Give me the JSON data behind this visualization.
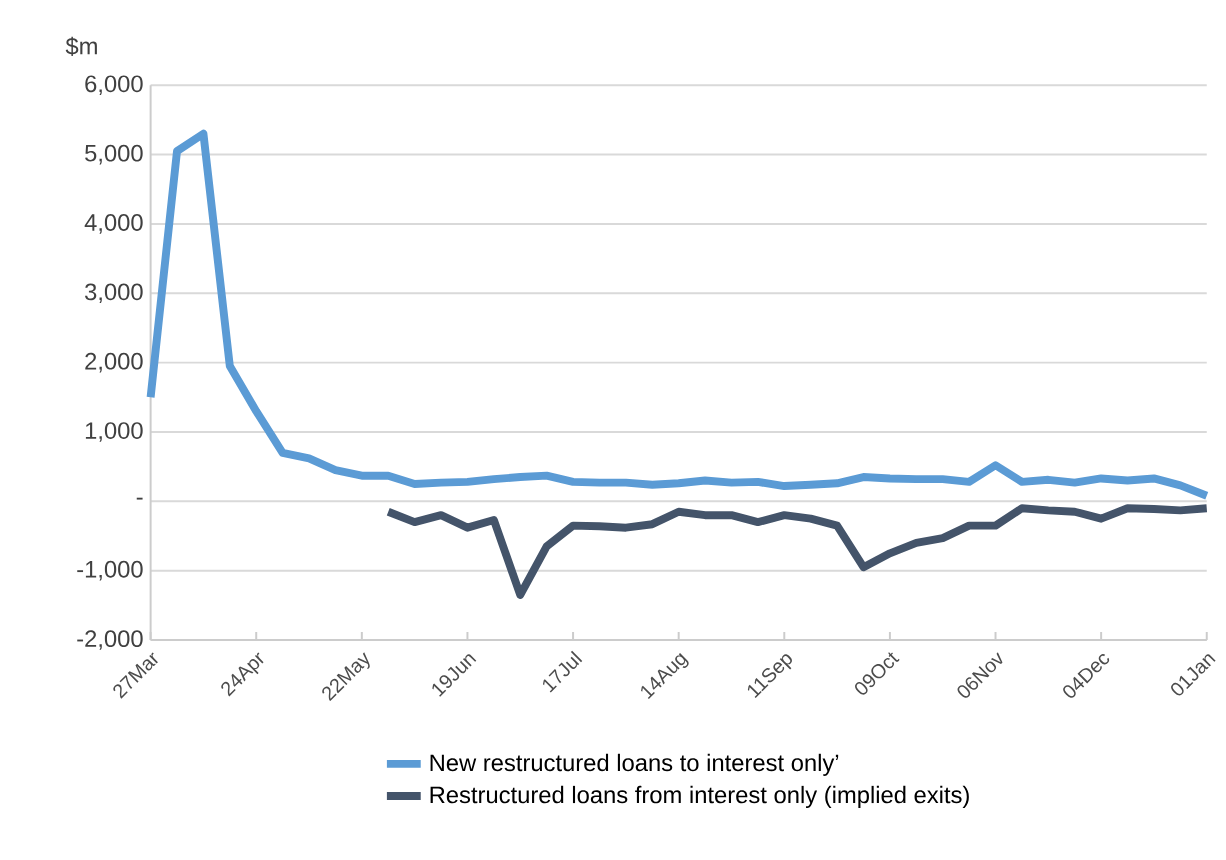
{
  "chart_data": {
    "type": "line",
    "ylabel": "$m",
    "categories": [
      "27Mar",
      null,
      null,
      null,
      "24Apr",
      null,
      null,
      null,
      "22May",
      null,
      null,
      null,
      "19Jun",
      null,
      null,
      null,
      "17Jul",
      null,
      null,
      null,
      "14Aug",
      null,
      null,
      null,
      "11Sep",
      null,
      null,
      null,
      "09Oct",
      null,
      null,
      null,
      "06Nov",
      null,
      null,
      null,
      "04Dec",
      null,
      null,
      null,
      "01Jan"
    ],
    "series": [
      {
        "name": "New restructured loans to interest only’",
        "color": "#5b9bd5",
        "values": [
          1500,
          5050,
          5300,
          1950,
          1300,
          700,
          620,
          450,
          370,
          370,
          250,
          270,
          280,
          320,
          350,
          370,
          280,
          270,
          270,
          240,
          260,
          300,
          270,
          280,
          220,
          240,
          260,
          350,
          330,
          320,
          320,
          280,
          520,
          280,
          310,
          270,
          330,
          300,
          330,
          230,
          80
        ]
      },
      {
        "name": "Restructured loans from interest only (implied exits)",
        "color": "#44546a",
        "values": [
          null,
          null,
          null,
          null,
          null,
          null,
          null,
          null,
          null,
          -150,
          -300,
          -200,
          -380,
          -270,
          -1350,
          -650,
          -350,
          -360,
          -380,
          -330,
          -150,
          -200,
          -200,
          -300,
          -200,
          -250,
          -350,
          -950,
          -750,
          -600,
          -530,
          -350,
          -350,
          -100,
          -130,
          -150,
          -250,
          -100,
          -110,
          -130,
          -100
        ]
      }
    ],
    "ylim": [
      -2000,
      6000
    ],
    "yticks": [
      {
        "value": -2000,
        "label": "-2,000"
      },
      {
        "value": -1000,
        "label": "-1,000"
      },
      {
        "value": 0,
        "label": "-"
      },
      {
        "value": 1000,
        "label": "1,000"
      },
      {
        "value": 2000,
        "label": "2,000"
      },
      {
        "value": 3000,
        "label": "3,000"
      },
      {
        "value": 4000,
        "label": "4,000"
      },
      {
        "value": 5000,
        "label": "5,000"
      },
      {
        "value": 6000,
        "label": "6,000"
      }
    ],
    "grid": "y",
    "legend": "bottom",
    "marker": "none",
    "line_style": "solid"
  }
}
